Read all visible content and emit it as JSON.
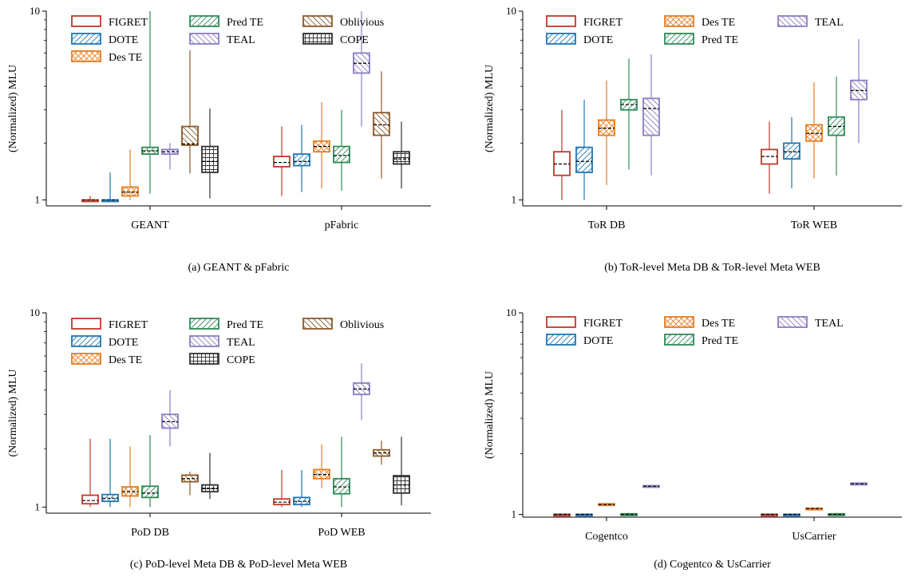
{
  "colors": {
    "FIGRET": "#c0392b",
    "DOTE": "#1f77b4",
    "Des TE": "#e67e22",
    "Pred TE": "#2e8b57",
    "TEAL": "#8e7cc3",
    "Oblivious": "#8b5a2b",
    "COPE": "#333333"
  },
  "chart_data": [
    {
      "type": "box",
      "caption": "(a)  GEANT & pFabric",
      "ylabel": "(Normalized) MLU",
      "yscale": "log",
      "ylim": [
        0.93,
        10
      ],
      "yticks": [
        "1",
        "10"
      ],
      "legend": {
        "placement": "top-left",
        "columns": [
          [
            "FIGRET",
            "DOTE",
            "Des TE"
          ],
          [
            "Pred TE",
            "TEAL"
          ],
          [
            "Oblivious",
            "COPE"
          ]
        ]
      },
      "categories": [
        "GEANT",
        "pFabric"
      ],
      "series": [
        {
          "name": "FIGRET",
          "boxes": [
            {
              "min": 0.99,
              "q1": 0.995,
              "med": 1.0,
              "q3": 1.0,
              "max": 1.05
            },
            {
              "min": 1.05,
              "q1": 1.5,
              "med": 1.58,
              "q3": 1.7,
              "max": 2.45
            }
          ]
        },
        {
          "name": "DOTE",
          "boxes": [
            {
              "min": 0.99,
              "q1": 0.995,
              "med": 1.0,
              "q3": 1.0,
              "max": 1.4
            },
            {
              "min": 1.1,
              "q1": 1.52,
              "med": 1.6,
              "q3": 1.75,
              "max": 2.5
            }
          ]
        },
        {
          "name": "Des TE",
          "boxes": [
            {
              "min": 1.0,
              "q1": 1.05,
              "med": 1.1,
              "q3": 1.17,
              "max": 1.85
            },
            {
              "min": 1.15,
              "q1": 1.8,
              "med": 1.92,
              "q3": 2.05,
              "max": 3.3
            }
          ]
        },
        {
          "name": "Pred TE",
          "boxes": [
            {
              "min": 1.08,
              "q1": 1.75,
              "med": 1.82,
              "q3": 1.9,
              "max": 10.0
            },
            {
              "min": 1.12,
              "q1": 1.58,
              "med": 1.72,
              "q3": 1.92,
              "max": 3.0
            }
          ]
        },
        {
          "name": "TEAL",
          "boxes": [
            {
              "min": 1.45,
              "q1": 1.75,
              "med": 1.8,
              "q3": 1.85,
              "max": 2.0
            },
            {
              "min": 2.45,
              "q1": 4.7,
              "med": 5.3,
              "q3": 6.0,
              "max": 10.0
            }
          ]
        },
        {
          "name": "Oblivious",
          "boxes": [
            {
              "min": 1.38,
              "q1": 1.95,
              "med": 1.98,
              "q3": 2.45,
              "max": 6.2
            },
            {
              "min": 1.3,
              "q1": 2.2,
              "med": 2.5,
              "q3": 2.9,
              "max": 4.8
            }
          ]
        },
        {
          "name": "COPE",
          "boxes": [
            {
              "min": 1.02,
              "q1": 1.4,
              "med": 1.6,
              "q3": 1.92,
              "max": 3.05
            },
            {
              "min": 1.15,
              "q1": 1.55,
              "med": 1.65,
              "q3": 1.8,
              "max": 2.6
            }
          ]
        }
      ]
    },
    {
      "type": "box",
      "caption": "(b)  ToR-level Meta DB & ToR-level Meta WEB",
      "ylabel": "(Normalized) MLU",
      "yscale": "log",
      "ylim": [
        0.93,
        10
      ],
      "yticks": [
        "1",
        "10"
      ],
      "legend": {
        "placement": "top-left",
        "columns": [
          [
            "FIGRET",
            "DOTE"
          ],
          [
            "Des TE",
            "Pred TE"
          ],
          [
            "TEAL"
          ]
        ]
      },
      "categories": [
        "ToR DB",
        "ToR WEB"
      ],
      "series": [
        {
          "name": "FIGRET",
          "boxes": [
            {
              "min": 1.0,
              "q1": 1.35,
              "med": 1.55,
              "q3": 1.8,
              "max": 3.0
            },
            {
              "min": 1.08,
              "q1": 1.55,
              "med": 1.7,
              "q3": 1.85,
              "max": 2.6
            }
          ]
        },
        {
          "name": "DOTE",
          "boxes": [
            {
              "min": 1.0,
              "q1": 1.4,
              "med": 1.6,
              "q3": 1.9,
              "max": 3.4
            },
            {
              "min": 1.15,
              "q1": 1.65,
              "med": 1.8,
              "q3": 2.0,
              "max": 2.75
            }
          ]
        },
        {
          "name": "Des TE",
          "boxes": [
            {
              "min": 1.2,
              "q1": 2.2,
              "med": 2.4,
              "q3": 2.65,
              "max": 4.3
            },
            {
              "min": 1.3,
              "q1": 2.05,
              "med": 2.25,
              "q3": 2.5,
              "max": 4.2
            }
          ]
        },
        {
          "name": "Pred TE",
          "boxes": [
            {
              "min": 1.45,
              "q1": 3.0,
              "med": 3.2,
              "q3": 3.4,
              "max": 5.6
            },
            {
              "min": 1.35,
              "q1": 2.2,
              "med": 2.45,
              "q3": 2.75,
              "max": 4.5
            }
          ]
        },
        {
          "name": "TEAL",
          "boxes": [
            {
              "min": 1.35,
              "q1": 2.2,
              "med": 3.05,
              "q3": 3.45,
              "max": 5.9
            },
            {
              "min": 2.0,
              "q1": 3.4,
              "med": 3.8,
              "q3": 4.3,
              "max": 7.1
            }
          ]
        }
      ]
    },
    {
      "type": "box",
      "caption": "(c)  PoD-level Meta DB & PoD-level Meta WEB",
      "ylabel": "(Normalized) MLU",
      "yscale": "log",
      "ylim": [
        0.93,
        10
      ],
      "yticks": [
        "1",
        "10"
      ],
      "legend": {
        "placement": "top-left",
        "columns": [
          [
            "FIGRET",
            "DOTE",
            "Des TE"
          ],
          [
            "Pred TE",
            "TEAL",
            "COPE"
          ],
          [
            "Oblivious"
          ]
        ]
      },
      "categories": [
        "PoD DB",
        "PoD WEB"
      ],
      "series": [
        {
          "name": "FIGRET",
          "boxes": [
            {
              "min": 1.0,
              "q1": 1.04,
              "med": 1.08,
              "q3": 1.15,
              "max": 2.25
            },
            {
              "min": 1.0,
              "q1": 1.03,
              "med": 1.06,
              "q3": 1.1,
              "max": 1.55
            }
          ]
        },
        {
          "name": "DOTE",
          "boxes": [
            {
              "min": 1.0,
              "q1": 1.07,
              "med": 1.11,
              "q3": 1.16,
              "max": 2.25
            },
            {
              "min": 1.0,
              "q1": 1.03,
              "med": 1.07,
              "q3": 1.12,
              "max": 1.55
            }
          ]
        },
        {
          "name": "Des TE",
          "boxes": [
            {
              "min": 1.0,
              "q1": 1.14,
              "med": 1.2,
              "q3": 1.27,
              "max": 2.05
            },
            {
              "min": 1.25,
              "q1": 1.4,
              "med": 1.47,
              "q3": 1.56,
              "max": 2.1
            }
          ]
        },
        {
          "name": "Pred TE",
          "boxes": [
            {
              "min": 1.0,
              "q1": 1.12,
              "med": 1.18,
              "q3": 1.28,
              "max": 2.35
            },
            {
              "min": 1.0,
              "q1": 1.17,
              "med": 1.27,
              "q3": 1.4,
              "max": 2.3
            }
          ]
        },
        {
          "name": "TEAL",
          "boxes": [
            {
              "min": 2.05,
              "q1": 2.55,
              "med": 2.75,
              "q3": 3.0,
              "max": 4.0
            },
            {
              "min": 2.8,
              "q1": 3.8,
              "med": 4.05,
              "q3": 4.35,
              "max": 5.5
            }
          ]
        },
        {
          "name": "Oblivious",
          "boxes": [
            {
              "min": 1.15,
              "q1": 1.35,
              "med": 1.4,
              "q3": 1.46,
              "max": 1.52
            },
            {
              "min": 1.65,
              "q1": 1.83,
              "med": 1.9,
              "q3": 1.97,
              "max": 2.2
            }
          ]
        },
        {
          "name": "COPE",
          "boxes": [
            {
              "min": 1.1,
              "q1": 1.2,
              "med": 1.25,
              "q3": 1.3,
              "max": 1.9
            },
            {
              "min": 1.02,
              "q1": 1.18,
              "med": 1.3,
              "q3": 1.45,
              "max": 2.3
            }
          ]
        }
      ]
    },
    {
      "type": "box",
      "caption": "(d)  Cogentco & UsCarrier",
      "ylabel": "(Normalized) MLU",
      "yscale": "log",
      "ylim": [
        0.97,
        10
      ],
      "yticks": [
        "1",
        "10"
      ],
      "legend": {
        "placement": "top-left",
        "columns": [
          [
            "FIGRET",
            "DOTE"
          ],
          [
            "Des TE",
            "Pred TE"
          ],
          [
            "TEAL"
          ]
        ]
      },
      "categories": [
        "Cogentco",
        "UsCarrier"
      ],
      "series": [
        {
          "name": "FIGRET",
          "boxes": [
            {
              "min": 0.995,
              "q1": 0.998,
              "med": 1.0,
              "q3": 1.003,
              "max": 1.01
            },
            {
              "min": 0.995,
              "q1": 0.998,
              "med": 1.0,
              "q3": 1.003,
              "max": 1.01
            }
          ]
        },
        {
          "name": "DOTE",
          "boxes": [
            {
              "min": 0.995,
              "q1": 0.998,
              "med": 1.0,
              "q3": 1.003,
              "max": 1.01
            },
            {
              "min": 0.995,
              "q1": 0.998,
              "med": 1.0,
              "q3": 1.003,
              "max": 1.01
            }
          ]
        },
        {
          "name": "Des TE",
          "boxes": [
            {
              "min": 1.1,
              "q1": 1.11,
              "med": 1.12,
              "q3": 1.13,
              "max": 1.14
            },
            {
              "min": 1.06,
              "q1": 1.065,
              "med": 1.07,
              "q3": 1.075,
              "max": 1.08
            }
          ]
        },
        {
          "name": "Pred TE",
          "boxes": [
            {
              "min": 0.99,
              "q1": 0.998,
              "med": 1.0,
              "q3": 1.008,
              "max": 1.02
            },
            {
              "min": 0.99,
              "q1": 0.998,
              "med": 1.0,
              "q3": 1.008,
              "max": 1.02
            }
          ]
        },
        {
          "name": "TEAL",
          "boxes": [
            {
              "min": 1.36,
              "q1": 1.37,
              "med": 1.38,
              "q3": 1.39,
              "max": 1.4
            },
            {
              "min": 1.4,
              "q1": 1.41,
              "med": 1.42,
              "q3": 1.43,
              "max": 1.44
            }
          ]
        }
      ]
    }
  ]
}
